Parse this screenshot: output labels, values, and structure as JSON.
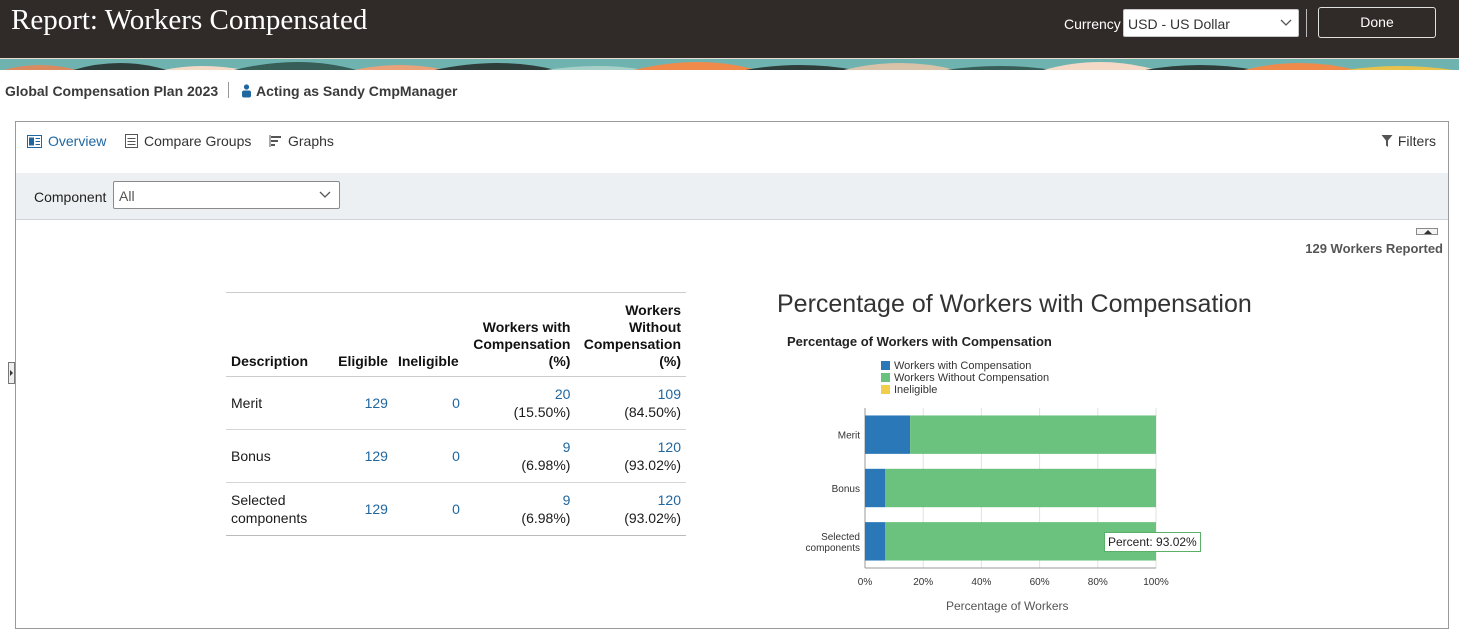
{
  "header": {
    "title": "Report: Workers Compensated",
    "currency_label": "Currency",
    "currency_value": "USD - US Dollar",
    "done_label": "Done"
  },
  "subheader": {
    "plan": "Global Compensation Plan 2023",
    "acting": "Acting as Sandy CmpManager"
  },
  "tabs": [
    {
      "label": "Overview",
      "icon": "overview-icon",
      "active": true
    },
    {
      "label": "Compare Groups",
      "icon": "list-icon",
      "active": false
    },
    {
      "label": "Graphs",
      "icon": "graph-icon",
      "active": false
    }
  ],
  "filters_label": "Filters",
  "component": {
    "label": "Component",
    "value": "All"
  },
  "workers_reported": "129 Workers Reported",
  "table": {
    "headers": {
      "description": "Description",
      "eligible": "Eligible",
      "ineligible": "Ineligible",
      "with_comp": [
        "Workers with",
        "Compensation",
        "(%)"
      ],
      "without_comp": [
        "Workers",
        "Without",
        "Compensation",
        "(%)"
      ]
    },
    "rows": [
      {
        "description": [
          "Merit"
        ],
        "eligible": "129",
        "ineligible": "0",
        "with_count": "20",
        "with_pct": "(15.50%)",
        "without_count": "109",
        "without_pct": "(84.50%)"
      },
      {
        "description": [
          "Bonus"
        ],
        "eligible": "129",
        "ineligible": "0",
        "with_count": "9",
        "with_pct": "(6.98%)",
        "without_count": "120",
        "without_pct": "(93.02%)"
      },
      {
        "description": [
          "Selected",
          "components"
        ],
        "eligible": "129",
        "ineligible": "0",
        "with_count": "9",
        "with_pct": "(6.98%)",
        "without_count": "120",
        "without_pct": "(93.02%)"
      }
    ]
  },
  "chart_data": {
    "type": "bar",
    "orientation": "horizontal",
    "stacked": true,
    "title": "Percentage of Workers with Compensation",
    "subtitle": "Percentage of Workers with Compensation",
    "categories": [
      "Merit",
      "Bonus",
      "Selected components"
    ],
    "series": [
      {
        "name": "Workers with Compensation",
        "values": [
          15.5,
          6.98,
          6.98
        ],
        "color": "#2a78b8"
      },
      {
        "name": "Workers Without Compensation",
        "values": [
          84.5,
          93.02,
          93.02
        ],
        "color": "#6bc17e"
      },
      {
        "name": "Ineligible",
        "values": [
          0,
          0,
          0
        ],
        "color": "#f2cd4a"
      }
    ],
    "xlabel": "Percentage of Workers",
    "xlim": [
      0,
      100
    ],
    "ticks": [
      "0%",
      "20%",
      "40%",
      "60%",
      "80%",
      "100%"
    ],
    "legend": "top-left",
    "tooltip": "Percent: 93.02%"
  },
  "colors": {
    "header_bg": "#302b28",
    "link": "#2067a0",
    "accent": "#2067a0"
  }
}
